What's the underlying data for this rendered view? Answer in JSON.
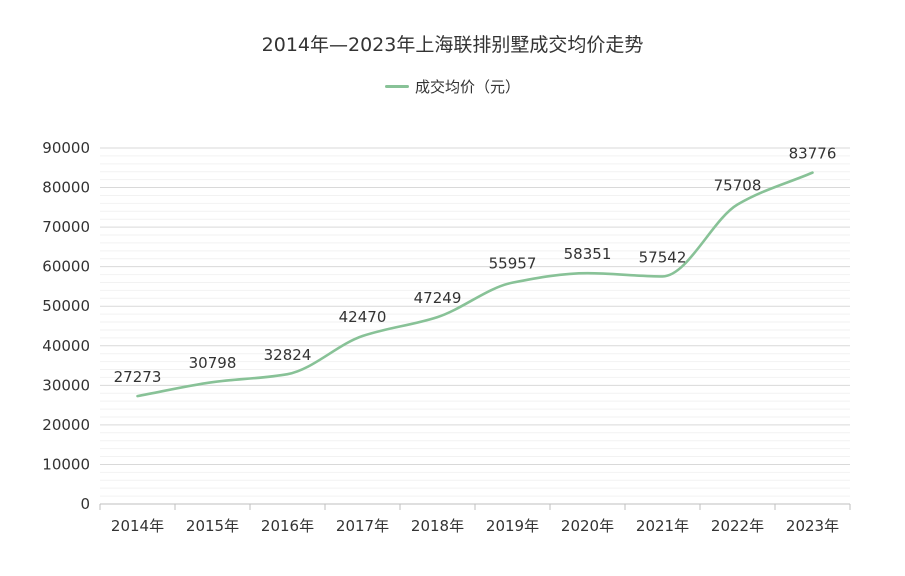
{
  "chart_data": {
    "type": "line",
    "title": "2014年—2023年上海联排别墅成交均价走势",
    "categories": [
      "2014年",
      "2015年",
      "2016年",
      "2017年",
      "2018年",
      "2019年",
      "2020年",
      "2021年",
      "2022年",
      "2023年"
    ],
    "series": [
      {
        "name": "成交均价（元）",
        "values": [
          27273,
          30798,
          32824,
          42470,
          47249,
          55957,
          58351,
          57542,
          75708,
          83776
        ],
        "color": "#88c297"
      }
    ],
    "ylim": [
      0,
      90000
    ],
    "yticks": [
      0,
      10000,
      20000,
      30000,
      40000,
      50000,
      60000,
      70000,
      80000,
      90000
    ],
    "grid": true,
    "legend_position": "top-center",
    "data_labels": true
  }
}
